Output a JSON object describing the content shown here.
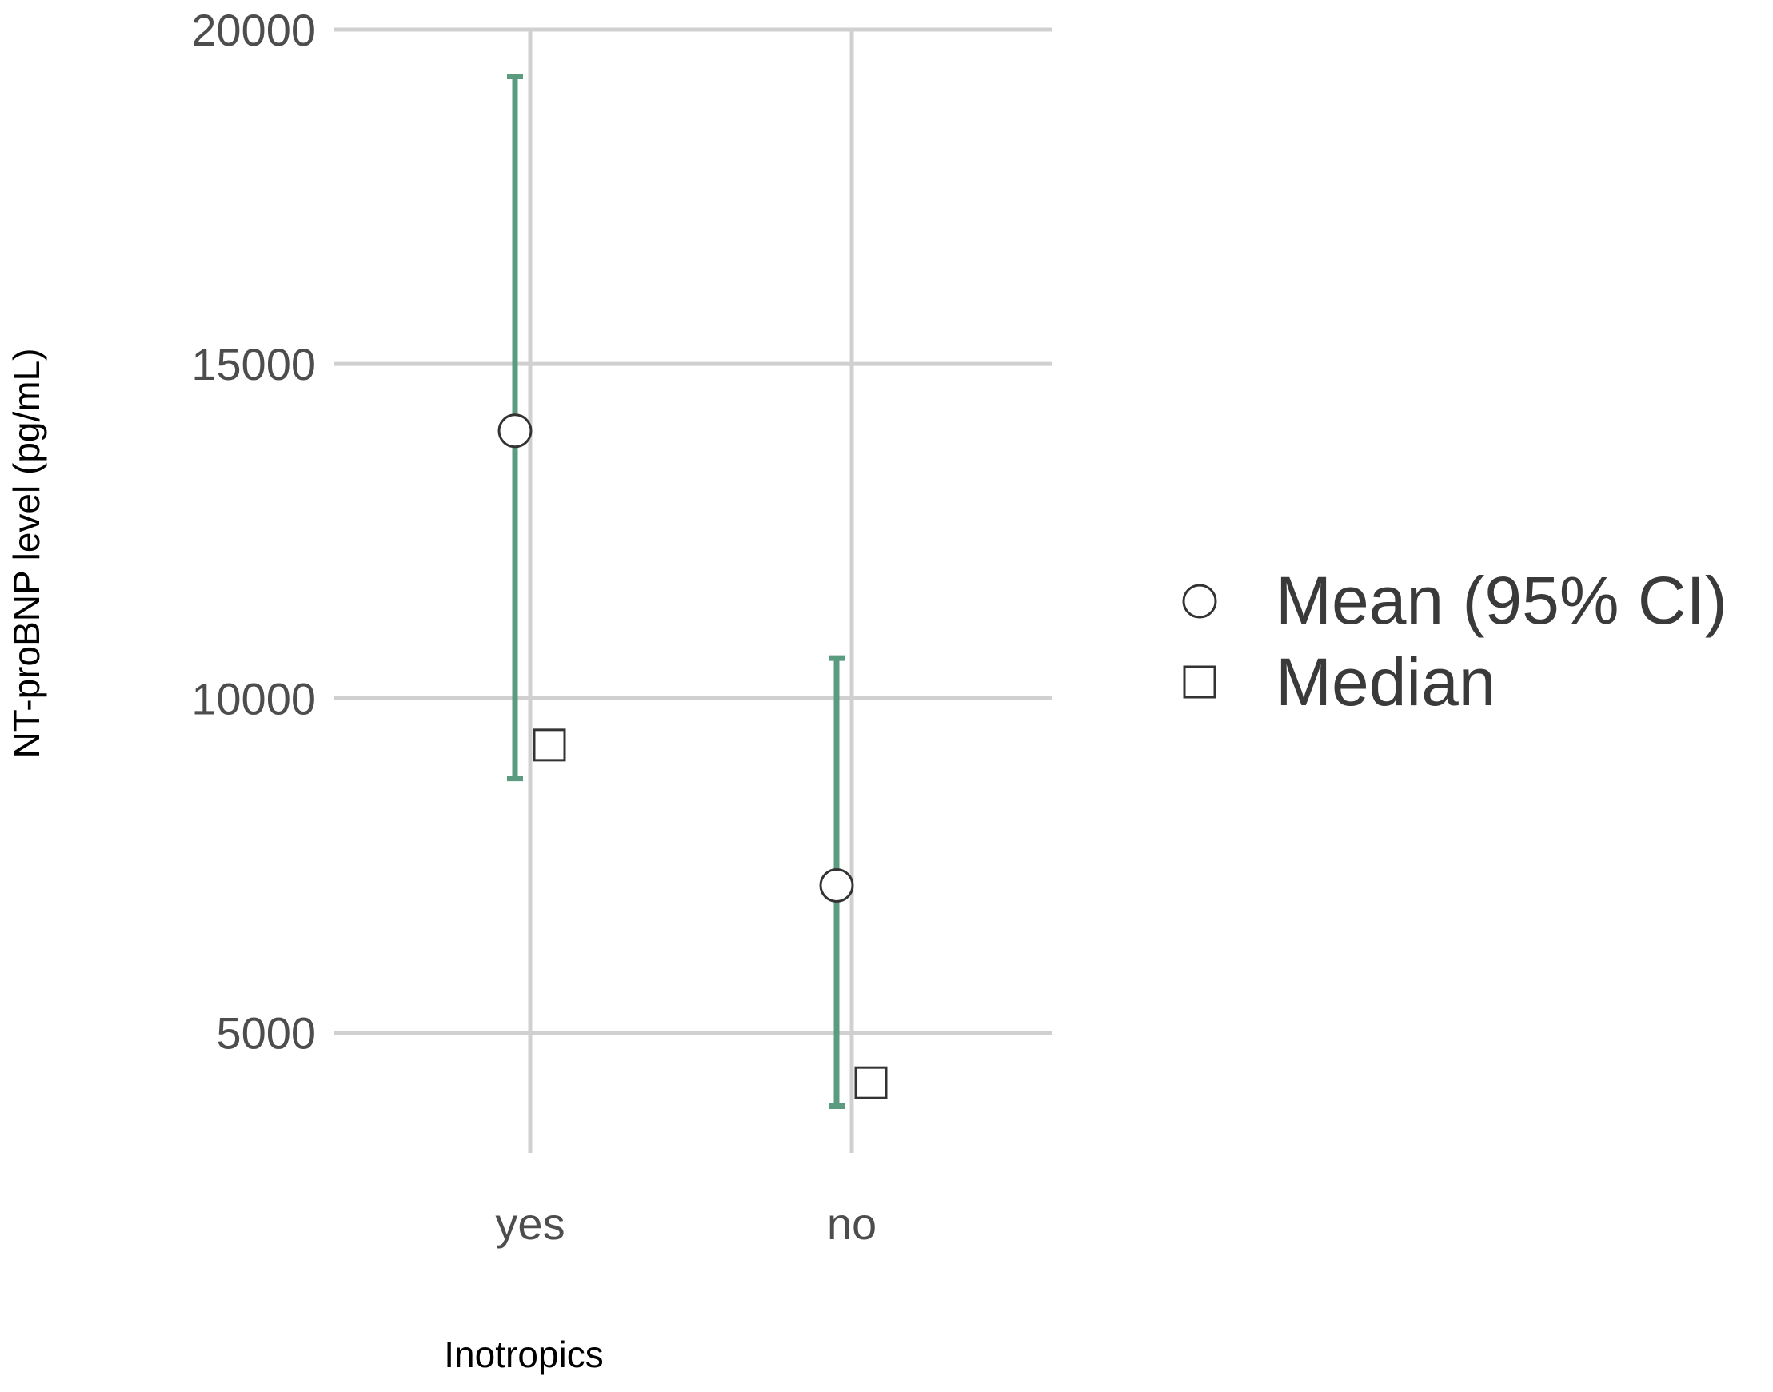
{
  "chart_data": {
    "type": "scatter",
    "title": "",
    "xlabel": "Inotropics",
    "ylabel": "NT-proBNP level (pg/mL)",
    "categories": [
      "yes",
      "no"
    ],
    "ylim": [
      3200,
      20000
    ],
    "yticks": [
      5000,
      10000,
      15000,
      20000
    ],
    "grid": true,
    "legend_position": "right",
    "series": [
      {
        "name": "Mean (95% CI)",
        "marker": "circle",
        "values": [
          14000,
          7200
        ],
        "ci_lower": [
          8800,
          3900
        ],
        "ci_upper": [
          19300,
          10600
        ]
      },
      {
        "name": "Median",
        "marker": "square",
        "values": [
          9300,
          4250
        ]
      }
    ],
    "colors": {
      "errorbar": "#5b9b80",
      "grid": "#d0d0d0",
      "marker_stroke": "#333333",
      "marker_fill": "#ffffff"
    }
  }
}
